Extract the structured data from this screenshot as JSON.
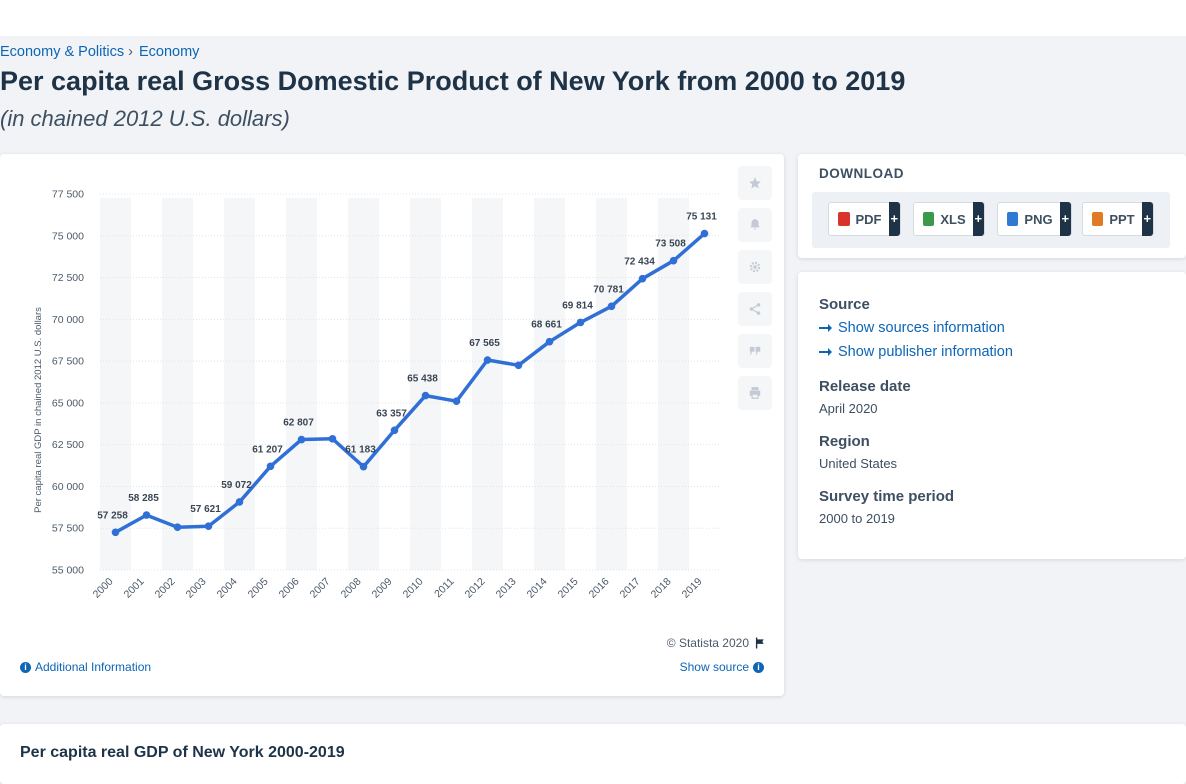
{
  "breadcrumb": {
    "item1": "Economy & Politics",
    "sep": "›",
    "item2": "Economy"
  },
  "page": {
    "title": "Per capita real Gross Domestic Product of New York from 2000 to 2019",
    "subtitle": "(in chained 2012 U.S. dollars)"
  },
  "chart_data": {
    "type": "line",
    "x": [
      "2000",
      "2001",
      "2002",
      "2003",
      "2004",
      "2005",
      "2006",
      "2007",
      "2008",
      "2009",
      "2010",
      "2011",
      "2012",
      "2013",
      "2014",
      "2015",
      "2016",
      "2017",
      "2018",
      "2019"
    ],
    "series": [
      {
        "values": [
          57258,
          58285,
          57560,
          57621,
          59072,
          61207,
          62807,
          62850,
          61183,
          63357,
          65438,
          65100,
          67565,
          67250,
          68661,
          69814,
          70781,
          72434,
          73508,
          75131
        ]
      }
    ],
    "data_labels": [
      "57 258",
      "58 285",
      "",
      "57 621",
      "59 072",
      "61 207",
      "62 807",
      "",
      "61 183",
      "63 357",
      "65 438",
      "",
      "67 565",
      "",
      "68 661",
      "69 814",
      "70 781",
      "72 434",
      "73 508",
      "75 131"
    ],
    "yticks": [
      55000,
      57500,
      60000,
      62500,
      65000,
      67500,
      70000,
      72500,
      75000,
      77500
    ],
    "ytick_labels": [
      "55 000",
      "57 500",
      "60 000",
      "62 500",
      "65 000",
      "67 500",
      "70 000",
      "72 500",
      "75 000",
      "77 500"
    ],
    "ylabel": "Per capita real GDP in chained 2012 U.S. dollars",
    "xlabel": "",
    "ylim": [
      55000,
      77500
    ],
    "grid": true,
    "legend": "none",
    "line_color": "#2f6fd6"
  },
  "chart_footer": {
    "copyright": "© Statista 2020",
    "additional_info": "Additional Information",
    "show_source": "Show source"
  },
  "tools": [
    "star-icon",
    "bell-icon",
    "gear-icon",
    "share-icon",
    "quote-icon",
    "print-icon"
  ],
  "download": {
    "title": "DOWNLOAD",
    "buttons": [
      {
        "label": "PDF",
        "plus": "+",
        "color": "#d8342c"
      },
      {
        "label": "XLS",
        "plus": "+",
        "color": "#3a9a4a"
      },
      {
        "label": "PNG",
        "plus": "+",
        "color": "#2f7bd1"
      },
      {
        "label": "PPT",
        "plus": "+",
        "color": "#e07a25"
      }
    ]
  },
  "meta": {
    "source_heading": "Source",
    "show_sources": "Show sources information",
    "show_publisher": "Show publisher information",
    "release_heading": "Release date",
    "release_value": "April 2020",
    "region_heading": "Region",
    "region_value": "United States",
    "survey_heading": "Survey time period",
    "survey_value": "2000 to 2019"
  },
  "bottom": {
    "title": "Per capita real GDP of New York 2000-2019"
  }
}
